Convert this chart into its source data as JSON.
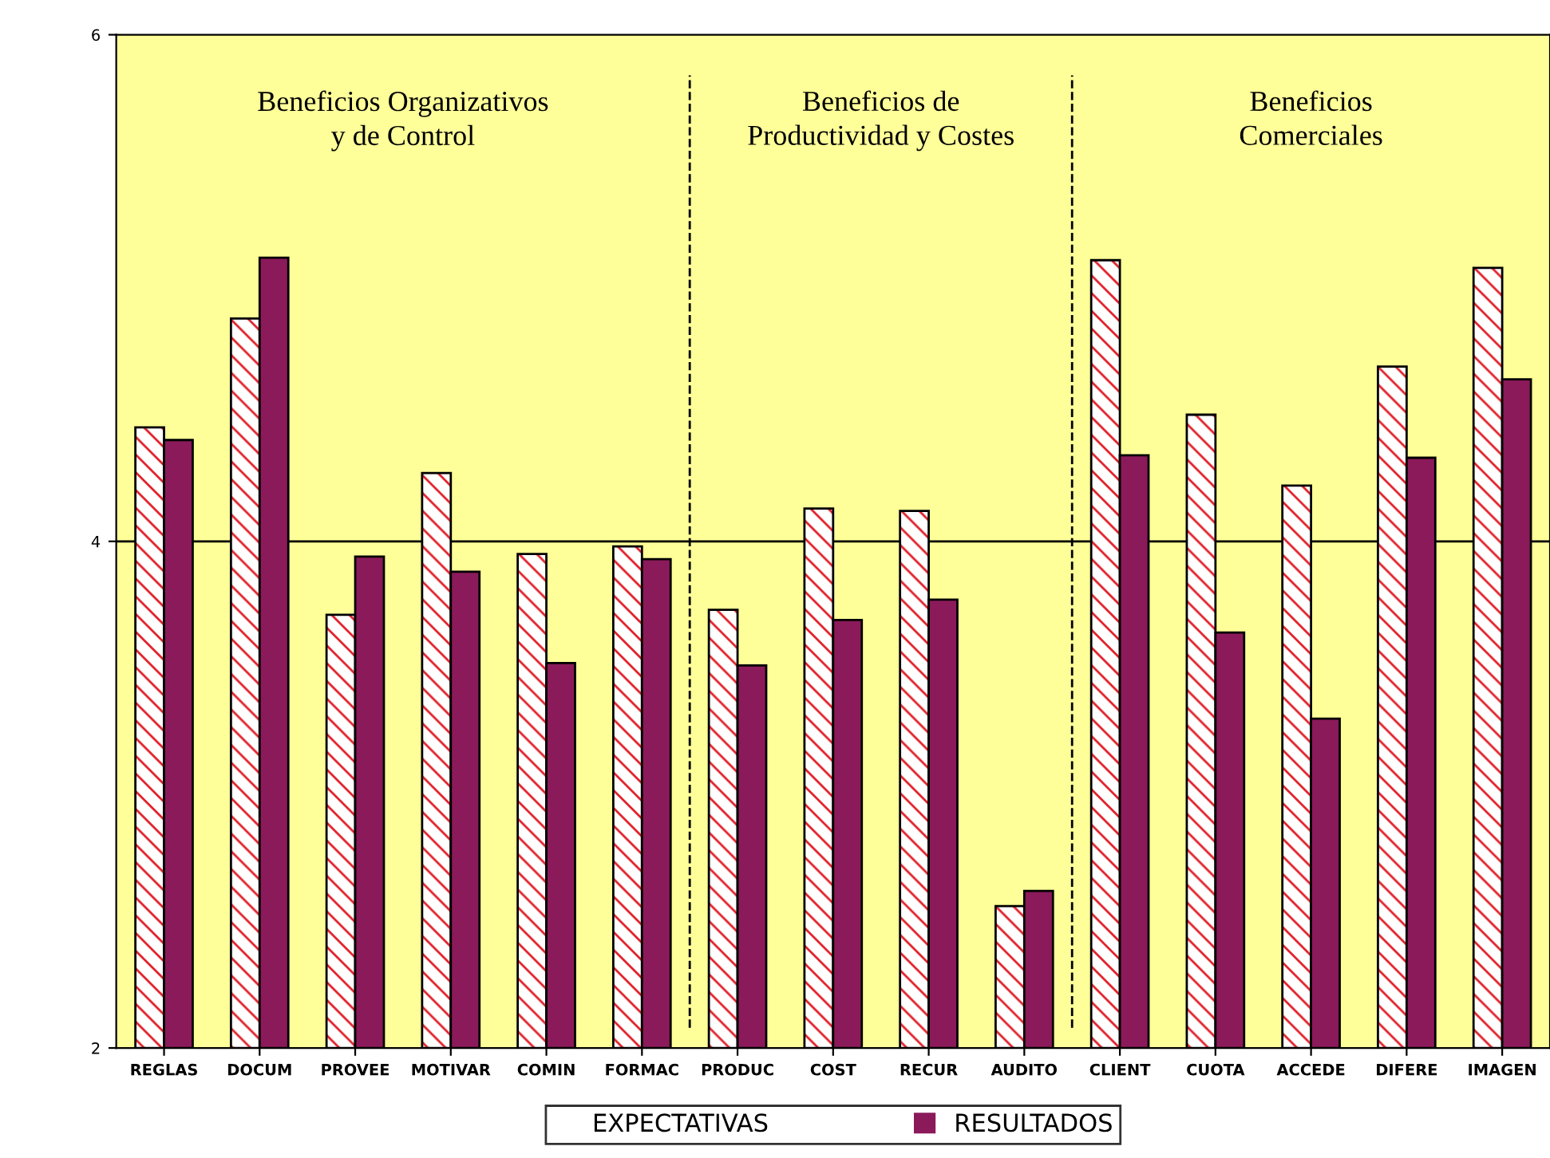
{
  "chart_data": {
    "type": "bar",
    "categories": [
      "REGLAS",
      "DOCUM",
      "PROVEE",
      "MOTIVAR",
      "COMIN",
      "FORMAC",
      "PRODUC",
      "COST",
      "RECUR",
      "AUDITO",
      "CLIENT",
      "CUOTA",
      "ACCEDE",
      "DIFERE",
      "IMAGEN"
    ],
    "series": [
      {
        "name": "EXPECTATIVAS",
        "color": "#e0202a",
        "values": [
          4.45,
          4.88,
          3.71,
          4.27,
          3.95,
          3.98,
          3.73,
          4.13,
          4.12,
          2.56,
          5.11,
          4.5,
          4.22,
          4.69,
          5.08
        ]
      },
      {
        "name": "RESULTADOS",
        "color": "#8b1a5a",
        "values": [
          4.4,
          5.12,
          3.94,
          3.88,
          3.52,
          3.93,
          3.51,
          3.69,
          3.77,
          2.62,
          4.34,
          3.64,
          3.3,
          4.33,
          4.64
        ]
      }
    ],
    "ylim": [
      2,
      6
    ],
    "yticks": [
      2,
      4,
      6
    ],
    "grid": false,
    "legend": "bottom",
    "ref_lines": [
      {
        "axis": "y",
        "value": 4,
        "color": "#000000",
        "line_style": "solid"
      }
    ],
    "annotations": [
      "Beneficios Organizativos\ny de Control",
      "Beneficios de\nProductividad y Costes",
      "Beneficios\nComerciales"
    ]
  }
}
